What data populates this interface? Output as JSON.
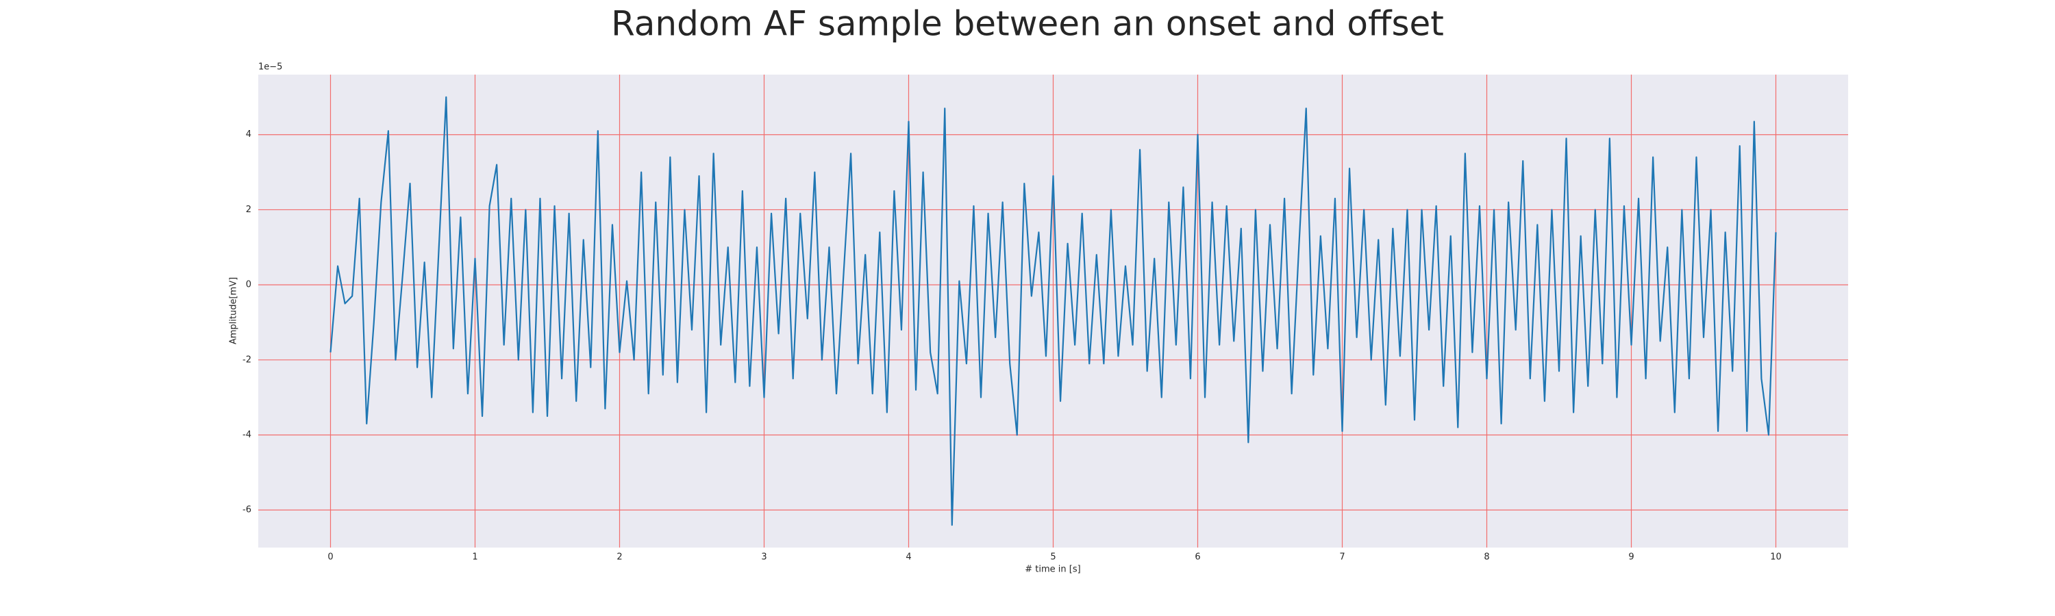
{
  "chart_data": {
    "type": "line",
    "title": "Random AF sample between an onset and offset",
    "xlabel": "# time in [s]",
    "ylabel": "Amplitude[mV]",
    "y_offset_label": "1e−5",
    "xlim": [
      -0.5,
      10.5
    ],
    "xticks": [
      0,
      1,
      2,
      3,
      4,
      5,
      6,
      7,
      8,
      9,
      10
    ],
    "ylim": [
      -7,
      5.6
    ],
    "yticks": [
      -6,
      -4,
      -2,
      0,
      2,
      4
    ],
    "grid": true,
    "grid_color": "#f26d6d",
    "background": "#eaeaf2",
    "x": [
      0,
      0.05,
      0.1,
      0.15,
      0.2,
      0.25,
      0.3,
      0.35,
      0.4,
      0.45,
      0.5,
      0.55,
      0.6,
      0.65,
      0.7,
      0.75,
      0.8,
      0.85,
      0.9,
      0.95,
      1,
      1.05,
      1.1,
      1.15,
      1.2,
      1.25,
      1.3,
      1.35,
      1.4,
      1.45,
      1.5,
      1.55,
      1.6,
      1.65,
      1.7,
      1.75,
      1.8,
      1.85,
      1.9,
      1.95,
      2,
      2.05,
      2.1,
      2.15,
      2.2,
      2.25,
      2.3,
      2.35,
      2.4,
      2.45,
      2.5,
      2.55,
      2.6,
      2.65,
      2.7,
      2.75,
      2.8,
      2.85,
      2.9,
      2.95,
      3,
      3.05,
      3.1,
      3.15,
      3.2,
      3.25,
      3.3,
      3.35,
      3.4,
      3.45,
      3.5,
      3.55,
      3.6,
      3.65,
      3.7,
      3.75,
      3.8,
      3.85,
      3.9,
      3.95,
      4,
      4.05,
      4.1,
      4.15,
      4.2,
      4.25,
      4.3,
      4.35,
      4.4,
      4.45,
      4.5,
      4.55,
      4.6,
      4.65,
      4.7,
      4.75,
      4.8,
      4.85,
      4.9,
      4.95,
      5,
      5.05,
      5.1,
      5.15,
      5.2,
      5.25,
      5.3,
      5.35,
      5.4,
      5.45,
      5.5,
      5.55,
      5.6,
      5.65,
      5.7,
      5.75,
      5.8,
      5.85,
      5.9,
      5.95,
      6,
      6.05,
      6.1,
      6.15,
      6.2,
      6.25,
      6.3,
      6.35,
      6.4,
      6.45,
      6.5,
      6.55,
      6.6,
      6.65,
      6.7,
      6.75,
      6.8,
      6.85,
      6.9,
      6.95,
      7,
      7.05,
      7.1,
      7.15,
      7.2,
      7.25,
      7.3,
      7.35,
      7.4,
      7.45,
      7.5,
      7.55,
      7.6,
      7.65,
      7.7,
      7.75,
      7.8,
      7.85,
      7.9,
      7.95,
      8,
      8.05,
      8.1,
      8.15,
      8.2,
      8.25,
      8.3,
      8.35,
      8.4,
      8.45,
      8.5,
      8.55,
      8.6,
      8.65,
      8.7,
      8.75,
      8.8,
      8.85,
      8.9,
      8.95,
      9,
      9.05,
      9.1,
      9.15,
      9.2,
      9.25,
      9.3,
      9.35,
      9.4,
      9.45,
      9.5,
      9.55,
      9.6,
      9.65,
      9.7,
      9.75,
      9.8,
      9.85,
      9.9,
      9.95,
      10
    ],
    "series": [
      {
        "color": "#1f77b4",
        "values": [
          -1.8,
          0.5,
          -0.5,
          -0.3,
          2.3,
          -3.7,
          -1.0,
          2.2,
          4.1,
          -2.0,
          0.3,
          2.7,
          -2.2,
          0.6,
          -3.0,
          1.0,
          5.0,
          -1.7,
          1.8,
          -2.9,
          0.7,
          -3.5,
          2.1,
          3.2,
          -1.6,
          2.3,
          -2.0,
          2.0,
          -3.4,
          2.3,
          -3.5,
          2.1,
          -2.5,
          1.9,
          -3.1,
          1.2,
          -2.2,
          4.1,
          -3.3,
          1.6,
          -1.8,
          0.1,
          -2.0,
          3.0,
          -2.9,
          2.2,
          -2.4,
          3.4,
          -2.6,
          2.0,
          -1.2,
          2.9,
          -3.4,
          3.5,
          -1.6,
          1.0,
          -2.6,
          2.5,
          -2.7,
          1.0,
          -3.0,
          1.9,
          -1.3,
          2.3,
          -2.5,
          1.9,
          -0.9,
          3.0,
          -2.0,
          1.0,
          -2.9,
          0.3,
          3.5,
          -2.1,
          0.8,
          -2.9,
          1.4,
          -3.4,
          2.5,
          -1.2,
          4.35,
          -2.8,
          3.0,
          -1.8,
          -2.9,
          4.7,
          -6.4,
          0.1,
          -2.1,
          2.1,
          -3.0,
          1.9,
          -1.4,
          2.2,
          -2.1,
          -4.0,
          2.7,
          -0.3,
          1.4,
          -1.9,
          2.9,
          -3.1,
          1.1,
          -1.6,
          1.9,
          -2.1,
          0.8,
          -2.1,
          2.0,
          -1.9,
          0.5,
          -1.6,
          3.6,
          -2.3,
          0.7,
          -3.0,
          2.2,
          -1.6,
          2.6,
          -2.5,
          4.0,
          -3.0,
          2.2,
          -1.6,
          2.1,
          -1.5,
          1.5,
          -4.2,
          2.0,
          -2.3,
          1.6,
          -1.7,
          2.3,
          -2.9,
          1.0,
          4.7,
          -2.4,
          1.3,
          -1.7,
          2.3,
          -3.9,
          3.1,
          -1.4,
          2.0,
          -2.0,
          1.2,
          -3.2,
          1.5,
          -1.9,
          2.0,
          -3.6,
          2.0,
          -1.2,
          2.1,
          -2.7,
          1.3,
          -3.8,
          3.5,
          -1.8,
          2.1,
          -2.5,
          2.0,
          -3.7,
          2.2,
          -1.2,
          3.3,
          -2.5,
          1.6,
          -3.1,
          2.0,
          -2.3,
          3.9,
          -3.4,
          1.3,
          -2.7,
          2.0,
          -2.1,
          3.9,
          -3.0,
          2.1,
          -1.6,
          2.3,
          -2.5,
          3.4,
          -1.5,
          1.0,
          -3.4,
          2.0,
          -2.5,
          3.4,
          -1.4,
          2.0,
          -3.9,
          1.4,
          -2.3,
          3.7,
          -3.9,
          4.35,
          -2.5,
          -4.0,
          1.4
        ]
      }
    ]
  }
}
